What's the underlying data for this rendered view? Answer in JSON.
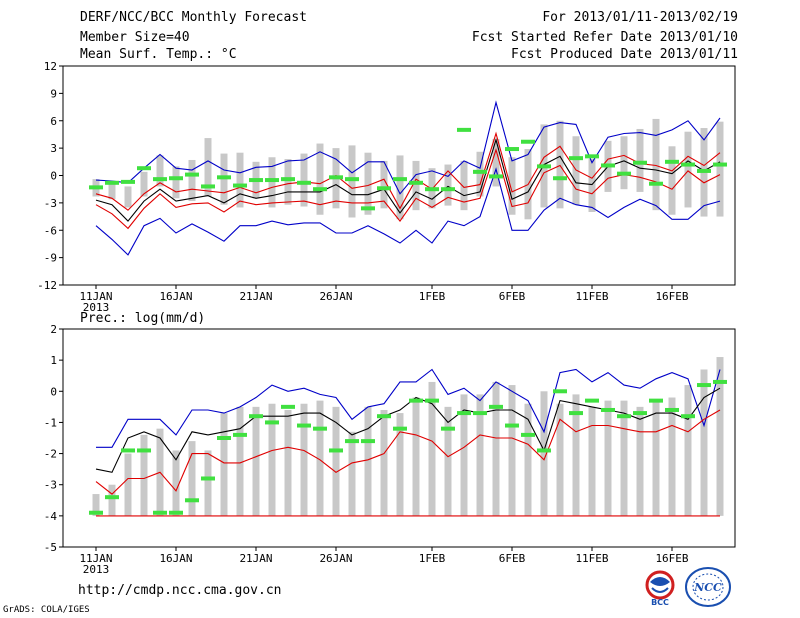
{
  "header": {
    "title": "DERF/NCC/BCC Monthly Forecast",
    "member_size": "Member Size=40",
    "variable1": "Mean Surf. Temp.: °C",
    "period": "For 2013/01/11-2013/02/19",
    "started": "Fcst Started Refer Date 2013/01/10",
    "produced": "Fcst Produced Date 2013/01/11"
  },
  "footer": {
    "url": "http://cmdp.ncc.cma.gov.cn",
    "grads": "GrADS: COLA/IGES",
    "logo_bcc": "BCC",
    "logo_ncc": "NCC"
  },
  "colors": {
    "bar": "#c8c8c8",
    "green": "#40e040",
    "blue": "#0000c8",
    "red": "#e00000",
    "black": "#000000"
  },
  "chart_data": [
    {
      "type": "line",
      "title": "",
      "ylabel": "Mean Surf. Temp.: °C",
      "ylim": [
        -12,
        12
      ],
      "yticks": [
        -12,
        -9,
        -6,
        -3,
        0,
        3,
        6,
        9,
        12
      ],
      "x_ticks": [
        {
          "day": 0,
          "label": "11JAN",
          "sub": "2013"
        },
        {
          "day": 5,
          "label": "16JAN",
          "sub": ""
        },
        {
          "day": 10,
          "label": "21JAN",
          "sub": ""
        },
        {
          "day": 15,
          "label": "26JAN",
          "sub": ""
        },
        {
          "day": 21,
          "label": "1FEB",
          "sub": ""
        },
        {
          "day": 26,
          "label": "6FEB",
          "sub": ""
        },
        {
          "day": 31,
          "label": "11FEB",
          "sub": ""
        },
        {
          "day": 36,
          "label": "16FEB",
          "sub": ""
        }
      ],
      "days": 40,
      "bar_low": [
        -2.3,
        -2.6,
        -3.5,
        -2.3,
        -1.2,
        -2.5,
        -2.8,
        -2.3,
        -3.2,
        -3.5,
        -2.5,
        -3.5,
        -3.2,
        -3.4,
        -4.3,
        -3.6,
        -4.6,
        -4.3,
        -3.6,
        -4.8,
        -3.8,
        -3.6,
        -3.3,
        -3.8,
        -2.3,
        -1.2,
        -4.3,
        -4.8,
        -3.5,
        -3.6,
        -3.2,
        -4.0,
        -1.8,
        -1.5,
        -1.8,
        -3.8,
        -4.3,
        -3.5,
        -4.5,
        -4.5
      ],
      "bar_high": [
        -0.4,
        -0.6,
        -1.2,
        0.4,
        2.2,
        1.0,
        1.7,
        4.1,
        2.4,
        2.5,
        1.5,
        2.0,
        1.8,
        2.4,
        3.5,
        3.0,
        3.3,
        2.5,
        1.6,
        2.2,
        1.6,
        0.8,
        1.2,
        1.6,
        2.6,
        4.0,
        2.0,
        2.9,
        5.6,
        6.0,
        4.3,
        1.8,
        3.8,
        4.3,
        5.1,
        6.2,
        3.2,
        4.8,
        5.2,
        5.9
      ],
      "green": [
        -1.3,
        -0.8,
        -0.7,
        0.8,
        -0.4,
        -0.3,
        0.1,
        -1.2,
        -0.2,
        -1.1,
        -0.5,
        -0.5,
        -0.4,
        -0.8,
        -1.5,
        -0.2,
        -0.4,
        -3.6,
        -1.4,
        -0.4,
        -0.8,
        -1.5,
        -1.5,
        5.0,
        0.4,
        -0.1,
        2.9,
        3.7,
        1.0,
        -0.3,
        1.9,
        2.1,
        1.1,
        0.2,
        1.4,
        -0.9,
        1.5,
        1.2,
        0.5,
        1.2
      ],
      "series": [
        {
          "name": "upper",
          "color": "blue",
          "values": [
            -0.5,
            -0.6,
            -0.8,
            0.8,
            2.3,
            0.8,
            0.6,
            1.6,
            0.6,
            0.3,
            0.9,
            1.0,
            1.6,
            1.7,
            2.6,
            1.8,
            0.3,
            1.5,
            1.5,
            -2.0,
            0.1,
            0.5,
            -0.1,
            1.6,
            0.8,
            8.0,
            1.6,
            2.3,
            5.3,
            5.8,
            5.6,
            1.4,
            4.2,
            4.6,
            4.7,
            4.4,
            5.0,
            6.0,
            3.9,
            6.3
          ]
        },
        {
          "name": "p80",
          "color": "red",
          "values": [
            -2.0,
            -2.5,
            -3.8,
            -2.0,
            -0.8,
            -1.8,
            -1.5,
            -1.7,
            -1.9,
            -1.3,
            -1.9,
            -1.3,
            -0.9,
            -0.7,
            -0.9,
            0.0,
            -1.4,
            -1.1,
            -0.4,
            -3.6,
            -0.4,
            -1.5,
            0.5,
            -1.3,
            -1.0,
            4.6,
            -1.8,
            -1.0,
            2.0,
            3.2,
            0.6,
            -0.3,
            1.8,
            2.2,
            1.3,
            1.1,
            0.5,
            2.1,
            1.1,
            2.5
          ]
        },
        {
          "name": "mean",
          "color": "black",
          "values": [
            -2.7,
            -3.2,
            -5.0,
            -2.8,
            -1.5,
            -2.8,
            -2.5,
            -2.2,
            -3.0,
            -2.0,
            -2.5,
            -2.2,
            -1.8,
            -1.8,
            -1.8,
            -1.0,
            -2.1,
            -2.1,
            -1.5,
            -4.1,
            -1.8,
            -2.6,
            -1.2,
            -2.2,
            -1.8,
            3.9,
            -2.6,
            -1.8,
            1.2,
            2.1,
            -0.8,
            -1.0,
            1.0,
            1.6,
            0.8,
            0.6,
            0.2,
            1.6,
            0.5,
            1.5
          ]
        },
        {
          "name": "p20",
          "color": "red",
          "values": [
            -3.2,
            -4.2,
            -5.8,
            -3.6,
            -2.0,
            -3.5,
            -3.1,
            -3.0,
            -4.0,
            -2.8,
            -3.2,
            -3.0,
            -2.9,
            -2.8,
            -3.2,
            -2.8,
            -3.0,
            -3.0,
            -2.8,
            -5.0,
            -2.5,
            -3.5,
            -2.4,
            -2.9,
            -2.5,
            2.8,
            -3.4,
            -3.0,
            0.3,
            1.1,
            -1.5,
            -2.0,
            -0.3,
            0.1,
            -0.2,
            -0.7,
            -1.5,
            0.5,
            -0.8,
            0.1
          ]
        },
        {
          "name": "lower",
          "color": "blue",
          "values": [
            -5.5,
            -7.0,
            -8.7,
            -5.5,
            -4.7,
            -6.3,
            -5.3,
            -6.2,
            -7.2,
            -5.5,
            -5.5,
            -5.0,
            -5.4,
            -5.2,
            -5.2,
            -6.3,
            -6.3,
            -5.5,
            -6.4,
            -7.4,
            -6.0,
            -7.4,
            -5.0,
            -5.5,
            -4.5,
            0.7,
            -6.0,
            -6.0,
            -3.8,
            -2.5,
            -3.2,
            -3.5,
            -4.6,
            -3.5,
            -2.6,
            -3.3,
            -4.8,
            -4.8,
            -3.3,
            -2.8
          ]
        }
      ]
    },
    {
      "type": "line",
      "title": "",
      "ylabel": "Prec.: log(mm/d)",
      "ylim": [
        -5,
        2
      ],
      "yticks": [
        -5,
        -4,
        -3,
        -2,
        -1,
        0,
        1,
        2
      ],
      "x_ticks": [
        {
          "day": 0,
          "label": "11JAN",
          "sub": "2013"
        },
        {
          "day": 5,
          "label": "16JAN",
          "sub": ""
        },
        {
          "day": 10,
          "label": "21JAN",
          "sub": ""
        },
        {
          "day": 15,
          "label": "26JAN",
          "sub": ""
        },
        {
          "day": 21,
          "label": "1FEB",
          "sub": ""
        },
        {
          "day": 26,
          "label": "6FEB",
          "sub": ""
        },
        {
          "day": 31,
          "label": "11FEB",
          "sub": ""
        },
        {
          "day": 36,
          "label": "16FEB",
          "sub": ""
        }
      ],
      "days": 40,
      "bar_low": [
        -4.0,
        -4.0,
        -4.0,
        -4.0,
        -4.0,
        -4.0,
        -4.0,
        -4.0,
        -4.0,
        -4.0,
        -4.0,
        -4.0,
        -4.0,
        -4.0,
        -4.0,
        -4.0,
        -4.0,
        -4.0,
        -4.0,
        -4.0,
        -4.0,
        -4.0,
        -4.0,
        -4.0,
        -4.0,
        -4.0,
        -4.0,
        -4.0,
        -4.0,
        -4.0,
        -4.0,
        -4.0,
        -4.0,
        -4.0,
        -4.0,
        -4.0,
        -4.0,
        -4.0,
        -4.0,
        -4.0
      ],
      "bar_high": [
        -3.3,
        -3.0,
        -2.0,
        -1.4,
        -1.2,
        -1.9,
        -1.6,
        -1.9,
        -0.7,
        -0.5,
        -0.5,
        -0.4,
        -0.6,
        -0.4,
        -0.3,
        -0.5,
        -1.3,
        -0.5,
        -0.6,
        -0.7,
        -0.2,
        0.3,
        -0.5,
        -0.1,
        -0.1,
        0.3,
        0.2,
        -0.4,
        0.0,
        -0.4,
        -0.1,
        -0.5,
        -0.3,
        -0.3,
        -0.5,
        -0.3,
        -0.2,
        0.2,
        0.7,
        1.1
      ],
      "green": [
        -3.9,
        -3.4,
        -1.9,
        -1.9,
        -3.9,
        -3.9,
        -3.5,
        -2.8,
        -1.5,
        -1.4,
        -0.8,
        -1.0,
        -0.5,
        -1.1,
        -1.2,
        -1.9,
        -1.6,
        -1.6,
        -0.8,
        -1.2,
        -0.3,
        -0.3,
        -1.2,
        -0.7,
        -0.7,
        -0.5,
        -1.1,
        -1.4,
        -1.9,
        0.0,
        -0.7,
        -0.3,
        -0.6,
        -0.8,
        -0.7,
        -0.3,
        -0.6,
        -0.8,
        0.2,
        0.3
      ],
      "series": [
        {
          "name": "upper",
          "color": "blue",
          "values": [
            -1.8,
            -1.8,
            -0.9,
            -0.9,
            -0.9,
            -1.4,
            -0.6,
            -0.6,
            -0.7,
            -0.5,
            -0.2,
            0.2,
            0.0,
            0.1,
            -0.1,
            -0.2,
            -0.9,
            -0.5,
            -0.4,
            0.3,
            0.3,
            0.7,
            -0.1,
            0.1,
            -0.3,
            0.3,
            0.0,
            -0.3,
            -1.3,
            0.6,
            0.7,
            0.3,
            0.6,
            0.2,
            0.1,
            0.4,
            0.6,
            0.4,
            -1.1,
            0.7
          ]
        },
        {
          "name": "mean",
          "color": "black",
          "values": [
            -2.5,
            -2.6,
            -1.5,
            -1.3,
            -1.5,
            -2.2,
            -1.3,
            -1.4,
            -1.3,
            -1.2,
            -0.8,
            -0.8,
            -0.8,
            -0.7,
            -0.7,
            -1.0,
            -1.4,
            -1.2,
            -0.8,
            -0.6,
            -0.2,
            -0.4,
            -1.0,
            -0.6,
            -0.7,
            -0.6,
            -0.6,
            -0.9,
            -1.9,
            -0.3,
            -0.4,
            -0.5,
            -0.6,
            -0.7,
            -0.9,
            -0.7,
            -0.7,
            -0.9,
            -0.2,
            0.1
          ]
        },
        {
          "name": "p20",
          "color": "red",
          "values": [
            -2.9,
            -3.3,
            -2.8,
            -2.8,
            -2.6,
            -3.2,
            -2.0,
            -2.0,
            -2.3,
            -2.3,
            -2.1,
            -1.9,
            -1.8,
            -1.9,
            -2.2,
            -2.6,
            -2.3,
            -2.2,
            -2.0,
            -1.3,
            -1.4,
            -1.6,
            -2.1,
            -1.8,
            -1.4,
            -1.5,
            -1.5,
            -1.7,
            -2.2,
            -0.9,
            -1.3,
            -1.1,
            -1.1,
            -1.2,
            -1.3,
            -1.3,
            -1.1,
            -1.3,
            -0.9,
            -0.6
          ]
        },
        {
          "name": "min",
          "color": "red",
          "values": [
            -4.0,
            -4.0,
            -4.0,
            -4.0,
            -4.0,
            -4.0,
            -4.0,
            -4.0,
            -4.0,
            -4.0,
            -4.0,
            -4.0,
            -4.0,
            -4.0,
            -4.0,
            -4.0,
            -4.0,
            -4.0,
            -4.0,
            -4.0,
            -4.0,
            -4.0,
            -4.0,
            -4.0,
            -4.0,
            -4.0,
            -4.0,
            -4.0,
            -4.0,
            -4.0,
            -4.0,
            -4.0,
            -4.0,
            -4.0,
            -4.0,
            -4.0,
            -4.0,
            -4.0,
            -4.0,
            -4.0
          ]
        }
      ]
    }
  ]
}
